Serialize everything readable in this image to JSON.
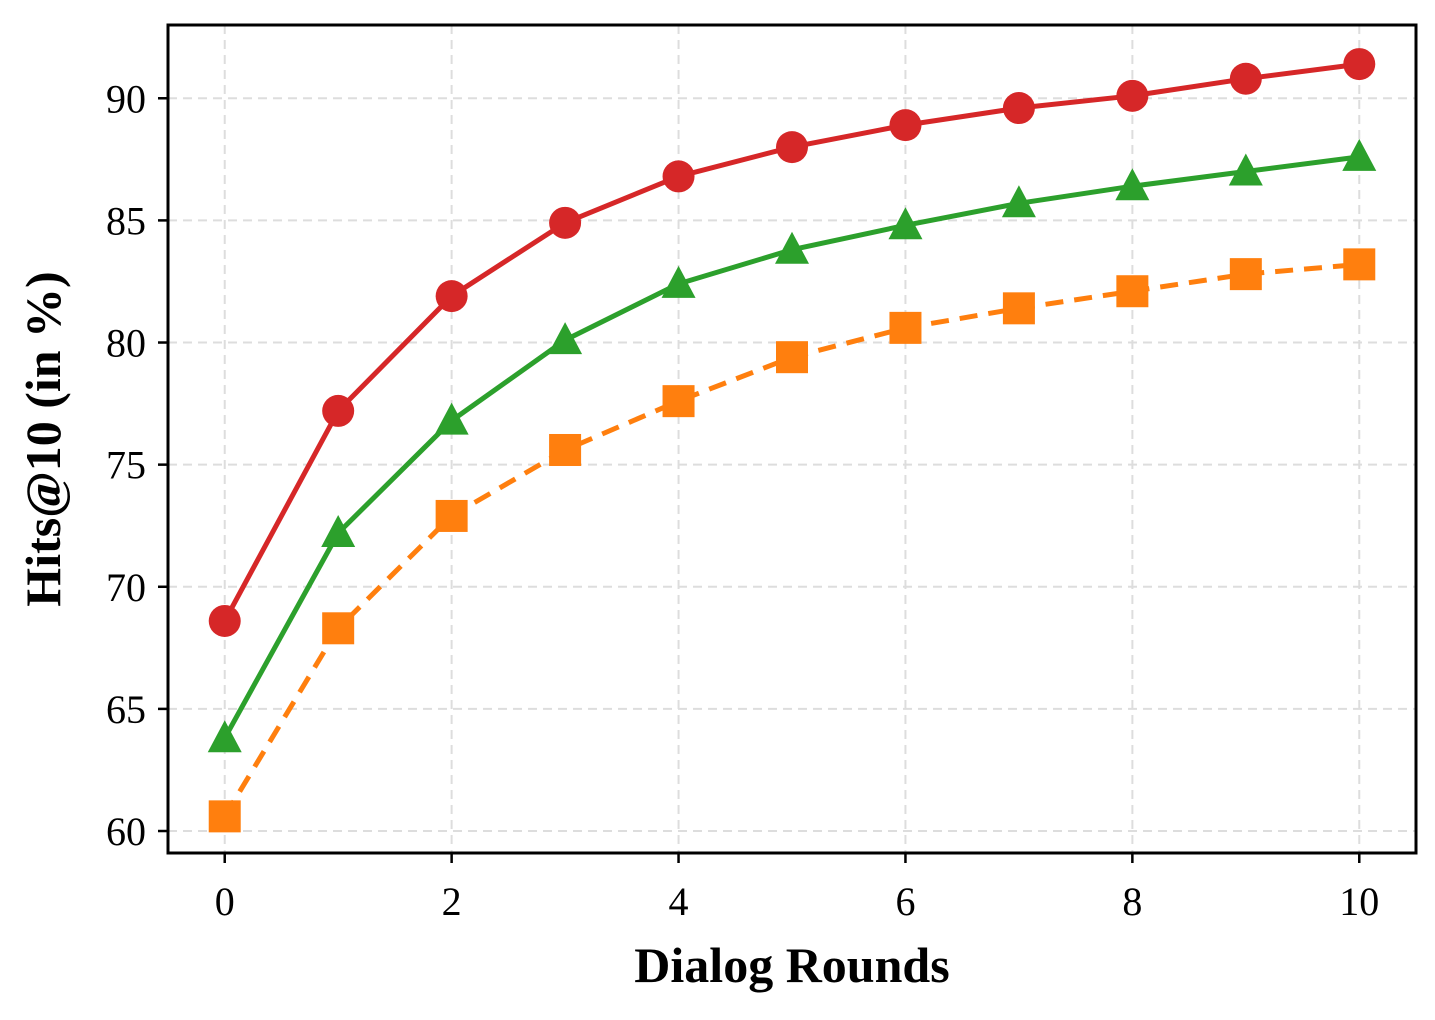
{
  "chart_data": {
    "type": "line",
    "title": "",
    "xlabel": "Dialog Rounds",
    "ylabel": "Hits@10 (in %)",
    "x": [
      0,
      1,
      2,
      3,
      4,
      5,
      6,
      7,
      8,
      9,
      10
    ],
    "xlim": [
      -0.5,
      10.5
    ],
    "ylim": [
      59.1,
      93.0
    ],
    "xticks": [
      0,
      2,
      4,
      6,
      8,
      10
    ],
    "yticks": [
      60,
      65,
      70,
      75,
      80,
      85,
      90
    ],
    "grid": true,
    "legend": "none",
    "series": [
      {
        "color": "#d62728",
        "marker": "circle",
        "line_style": "solid",
        "values": [
          68.6,
          77.2,
          81.9,
          84.9,
          86.8,
          88.0,
          88.9,
          89.6,
          90.1,
          90.8,
          91.4
        ]
      },
      {
        "color": "#2ca02c",
        "marker": "triangle",
        "line_style": "solid",
        "values": [
          63.8,
          72.2,
          76.8,
          80.1,
          82.4,
          83.8,
          84.8,
          85.7,
          86.4,
          87.0,
          87.6
        ]
      },
      {
        "color": "#ff7f0e",
        "marker": "square",
        "line_style": "dashed",
        "values": [
          60.6,
          68.3,
          72.9,
          75.6,
          77.6,
          79.4,
          80.6,
          81.4,
          82.1,
          82.8,
          83.2
        ]
      }
    ]
  }
}
